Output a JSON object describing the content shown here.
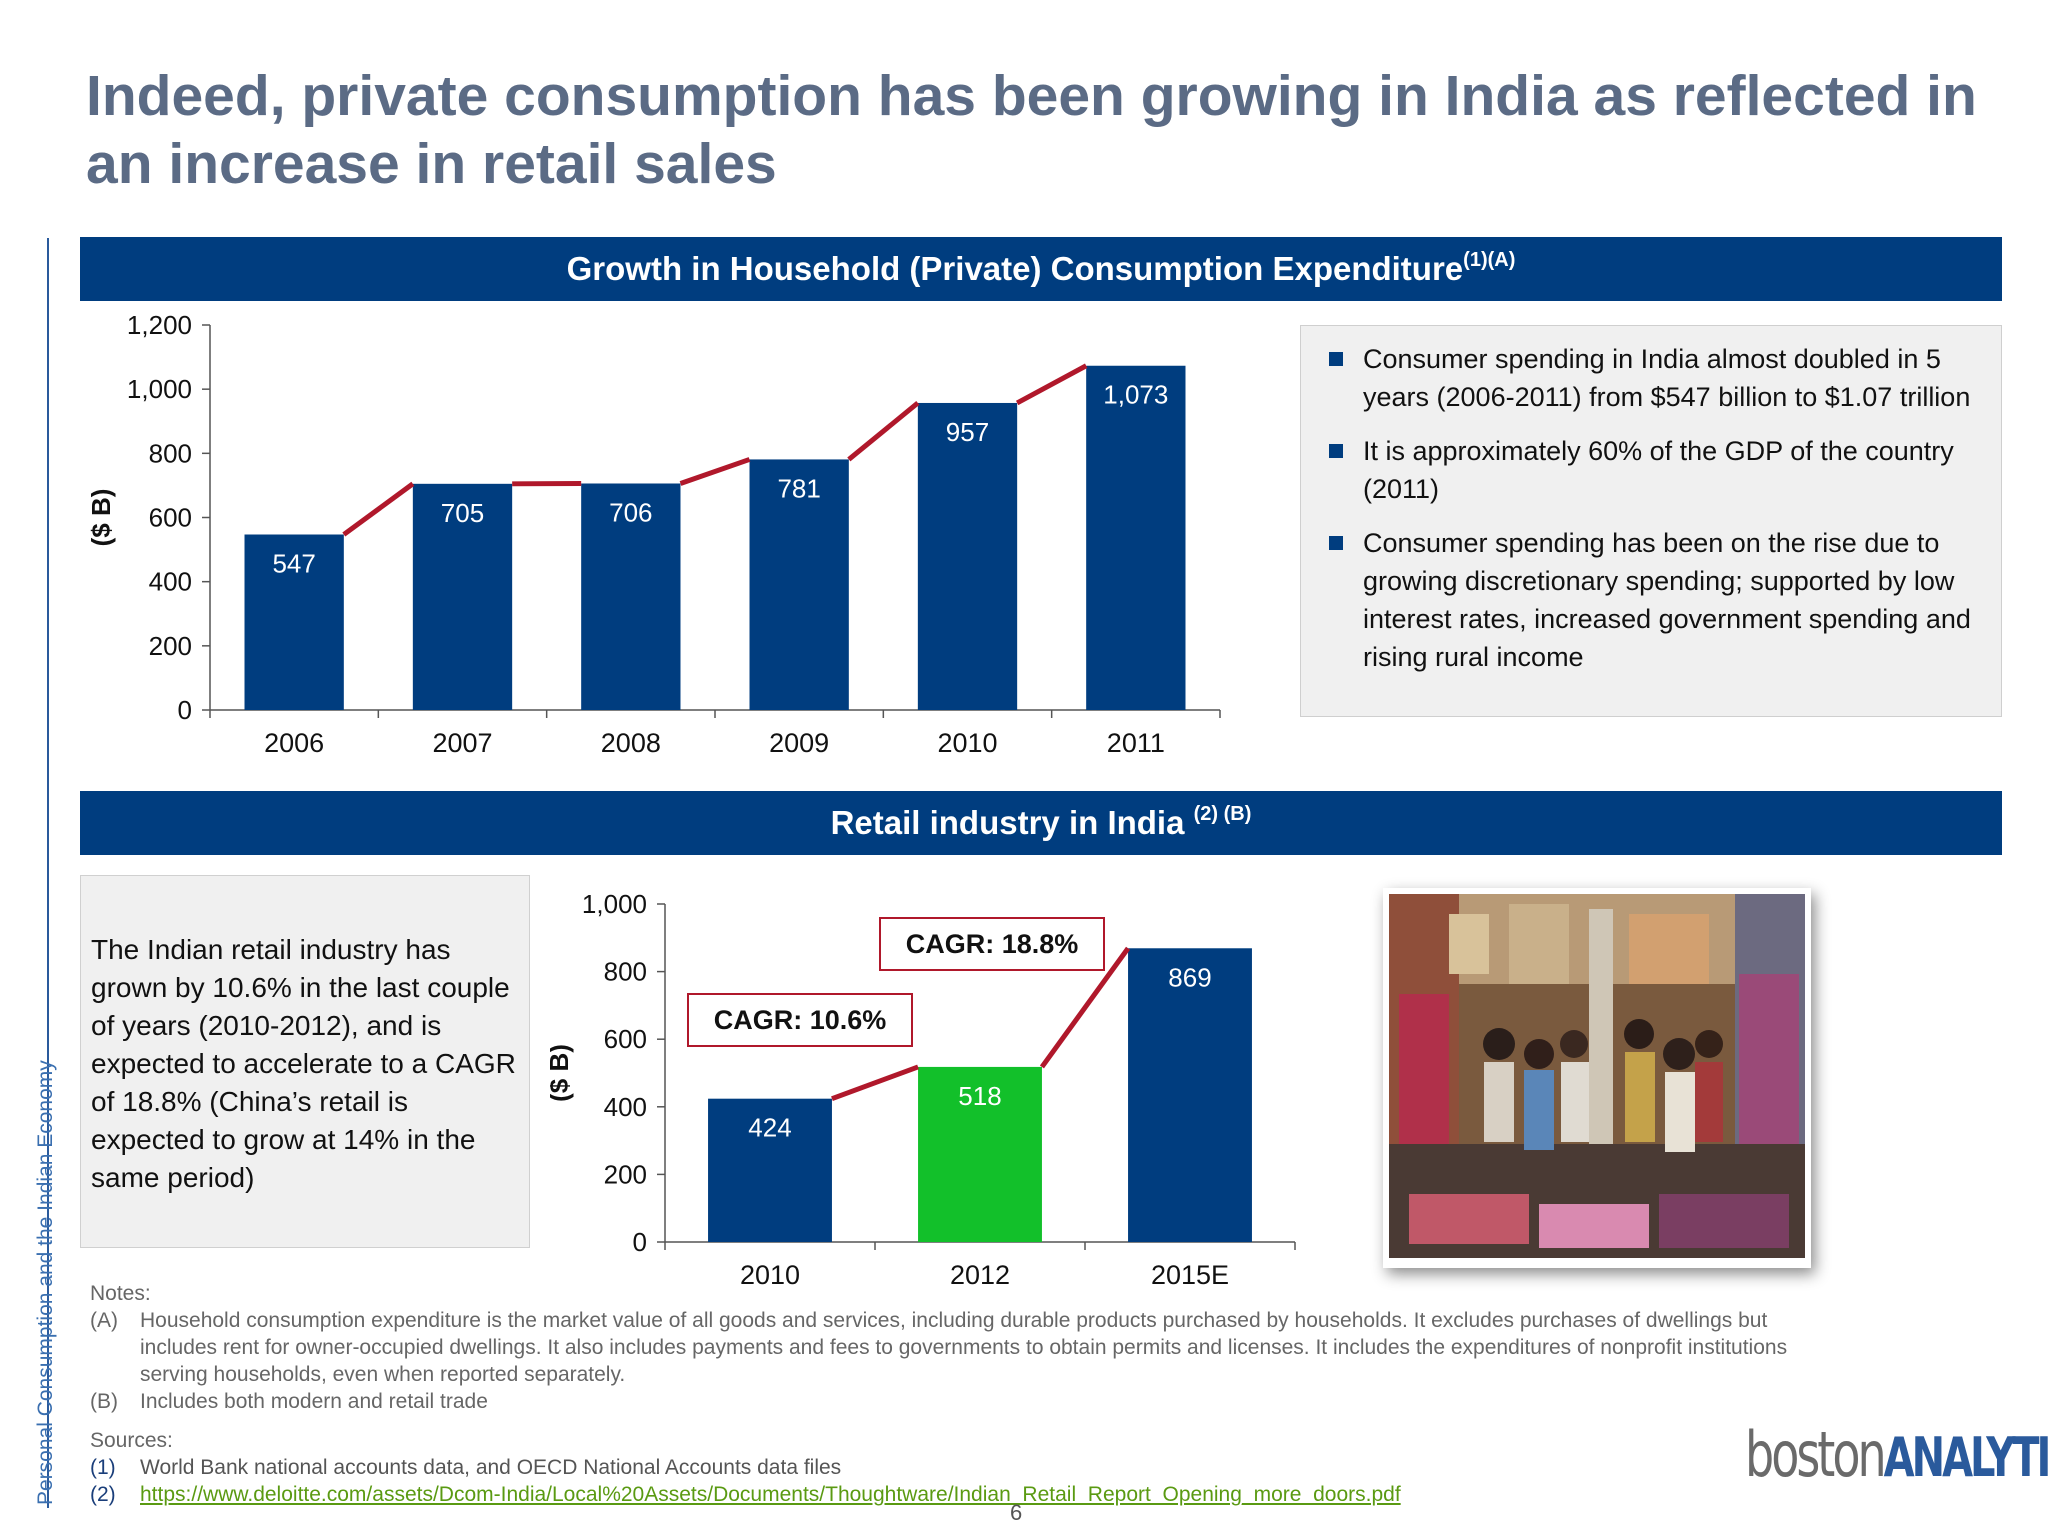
{
  "title": "Indeed, private consumption has been growing in India as reflected in an increase in retail sales",
  "side_label": "Personal Consumption and the Indian Economy",
  "section1": {
    "heading": "Growth in Household (Private) Consumption Expenditure",
    "heading_sup": "(1)(A)",
    "bullets": [
      "Consumer spending in India almost doubled in 5 years (2006-2011) from $547 billion to $1.07 trillion",
      "It is approximately 60% of the GDP of the country (2011)",
      "Consumer spending has been on the rise due to growing discretionary spending; supported by low interest rates, increased government spending and rising rural income"
    ]
  },
  "section2": {
    "heading": "Retail industry in India",
    "heading_sup": "(2) (B)",
    "text": "The Indian retail industry has grown by 10.6% in the last couple of years (2010-2012), and is expected to accelerate to a CAGR of 18.8% (China’s retail is expected to grow at 14% in the same period)"
  },
  "chart_data": [
    {
      "type": "bar",
      "ylabel": "($ B)",
      "categories": [
        "2006",
        "2007",
        "2008",
        "2009",
        "2010",
        "2011"
      ],
      "values": [
        547,
        705,
        706,
        781,
        957,
        1073
      ],
      "value_labels": [
        "547",
        "705",
        "706",
        "781",
        "957",
        "1,073"
      ],
      "ylim": [
        0,
        1200
      ],
      "yticks": [
        0,
        200,
        400,
        600,
        800,
        1000,
        1200
      ],
      "ytick_labels": [
        "0",
        "200",
        "400",
        "600",
        "800",
        "1,000",
        "1,200"
      ],
      "bar_color": "#003d7f",
      "connector_color": "#b0182b"
    },
    {
      "type": "bar",
      "ylabel": "($ B)",
      "categories": [
        "2010",
        "2012",
        "2015E"
      ],
      "values": [
        424,
        518,
        869
      ],
      "value_labels": [
        "424",
        "518",
        "869"
      ],
      "bar_colors": [
        "#003d7f",
        "#12c02a",
        "#003d7f"
      ],
      "ylim": [
        0,
        1000
      ],
      "yticks": [
        0,
        200,
        400,
        600,
        800,
        1000
      ],
      "ytick_labels": [
        "0",
        "200",
        "400",
        "600",
        "800",
        "1,000"
      ],
      "annotations": [
        "CAGR: 10.6%",
        "CAGR: 18.8%"
      ],
      "connector_color": "#b0182b"
    }
  ],
  "notes": {
    "title": "Notes:",
    "items": [
      {
        "tag": "(A)",
        "text": "Household consumption expenditure is the market value of all goods and services, including durable products purchased by households. It excludes purchases of dwellings but includes rent for owner-occupied dwellings. It also includes payments and fees to governments to obtain permits and licenses. It includes the expenditures of nonprofit institutions serving households, even when reported separately."
      },
      {
        "tag": "(B)",
        "text": "Includes both  modern and retail trade"
      }
    ]
  },
  "sources": {
    "title": "Sources:",
    "items": [
      {
        "tag": "(1)",
        "text": "World Bank national accounts data, and OECD National Accounts data files"
      },
      {
        "tag": "(2)",
        "text": "https://www.deloitte.com/assets/Dcom-India/Local%20Assets/Documents/Thoughtware/Indian_Retail_Report_Opening_more_doors.pdf"
      }
    ]
  },
  "page_number": "6",
  "logo": {
    "part1": "boston",
    "part2": "ANALYTICS"
  }
}
